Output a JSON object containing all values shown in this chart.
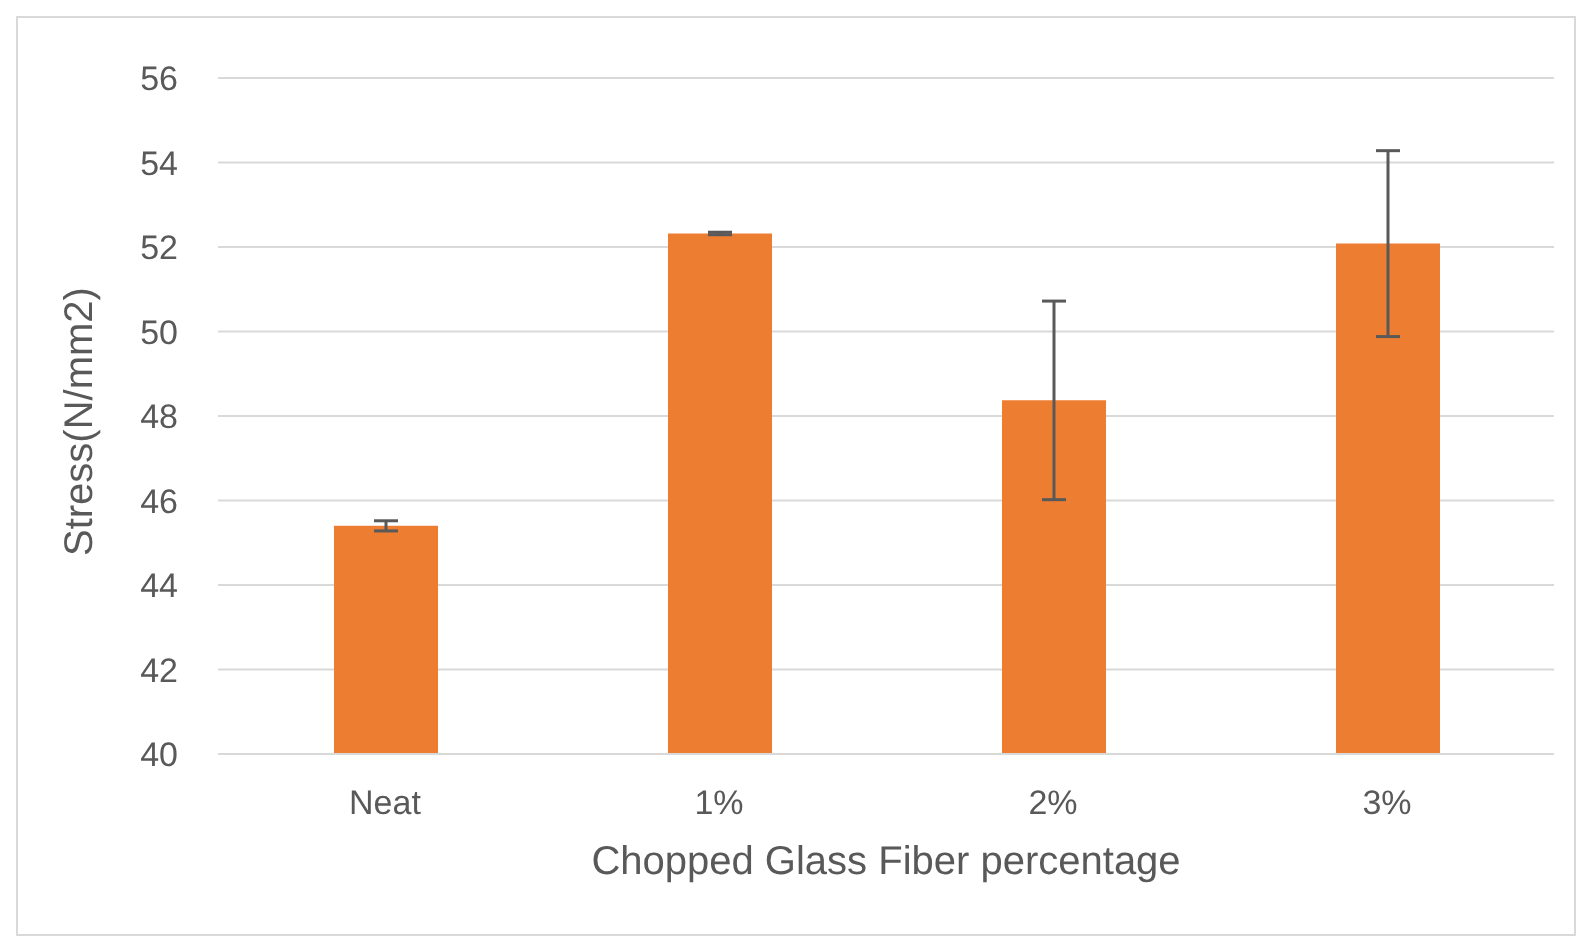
{
  "chart_data": {
    "type": "bar",
    "xlabel": "Chopped Glass Fiber percentage",
    "ylabel": "Stress(N/mm2)",
    "categories": [
      "Neat",
      "1%",
      "2%",
      "3%"
    ],
    "values": [
      45.4,
      52.32,
      48.37,
      52.08
    ],
    "errors": [
      0.12,
      0.03,
      2.35,
      2.2
    ],
    "color": "#ed7d31",
    "ylim": [
      40,
      56
    ],
    "yticks": [
      40,
      42,
      44,
      46,
      48,
      50,
      52,
      54,
      56
    ],
    "grid": "y",
    "legend": false
  }
}
